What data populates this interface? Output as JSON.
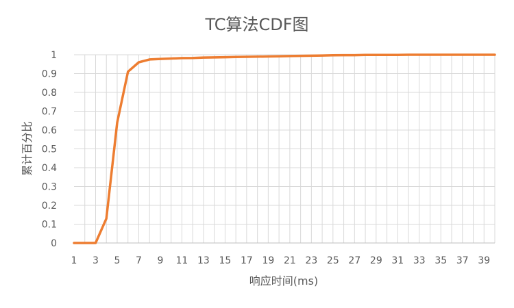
{
  "chart_data": {
    "type": "line",
    "title": "TC算法CDF图",
    "xlabel": "响应时间(ms)",
    "ylabel": "累计百分比",
    "xlim": [
      1,
      40
    ],
    "ylim": [
      0,
      1
    ],
    "x_tick_labels": [
      "1",
      "3",
      "5",
      "7",
      "9",
      "11",
      "13",
      "15",
      "17",
      "19",
      "21",
      "23",
      "25",
      "27",
      "29",
      "31",
      "33",
      "35",
      "37",
      "39"
    ],
    "y_tick_labels": [
      "0",
      "0.1",
      "0.2",
      "0.3",
      "0.4",
      "0.5",
      "0.6",
      "0.7",
      "0.8",
      "0.9",
      "1"
    ],
    "grid": true,
    "legend": "none",
    "series": [
      {
        "color": "#ED7D31",
        "x": [
          1,
          2,
          3,
          4,
          5,
          6,
          7,
          8,
          9,
          10,
          11,
          12,
          13,
          14,
          15,
          16,
          17,
          18,
          19,
          20,
          21,
          22,
          23,
          24,
          25,
          26,
          27,
          28,
          29,
          30,
          31,
          32,
          33,
          34,
          35,
          36,
          37,
          38,
          39,
          40
        ],
        "values": [
          0,
          0,
          0,
          0.13,
          0.64,
          0.91,
          0.96,
          0.975,
          0.978,
          0.98,
          0.982,
          0.983,
          0.985,
          0.986,
          0.987,
          0.988,
          0.989,
          0.99,
          0.991,
          0.992,
          0.993,
          0.994,
          0.995,
          0.996,
          0.997,
          0.998,
          0.998,
          0.999,
          0.999,
          0.999,
          0.999,
          1,
          1,
          1,
          1,
          1,
          1,
          1,
          1,
          1
        ]
      }
    ]
  }
}
